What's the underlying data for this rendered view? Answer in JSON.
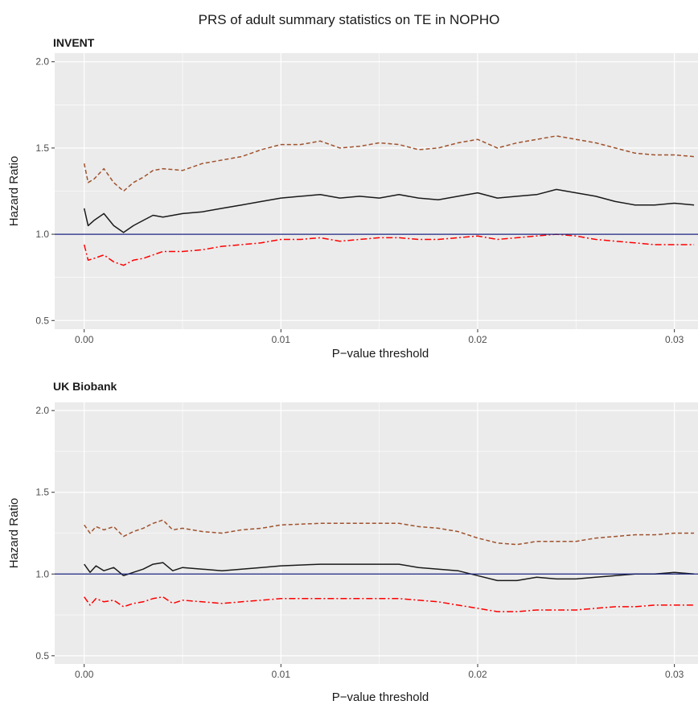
{
  "title": "PRS of adult summary statistics on TE in NOPHO",
  "colors": {
    "panel_bg": "#EBEBEB",
    "grid": "#FFFFFF",
    "hr_line": "#1A1A1A",
    "upper_ci": "#A0522D",
    "lower_ci": "#FF0000",
    "reference_line": "#1A237E"
  },
  "chart_data": [
    {
      "type": "line",
      "panel_title": "INVENT",
      "xlabel": "P−value threshold",
      "ylabel": "Hazard Ratio",
      "xlim": [
        -0.0015,
        0.0312
      ],
      "ylim": [
        0.45,
        2.05
      ],
      "x_ticks": [
        0.0,
        0.01,
        0.02,
        0.03
      ],
      "x_tick_labels": [
        "0.00",
        "0.01",
        "0.02",
        "0.03"
      ],
      "y_ticks": [
        0.5,
        1.0,
        1.5,
        2.0
      ],
      "y_tick_labels": [
        "0.5",
        "1.0",
        "1.5",
        "2.0"
      ],
      "reference_line": 1.0,
      "grid": true,
      "series": [
        {
          "style": "solid",
          "color": "#1A1A1A",
          "x": [
            0.0,
            0.0002,
            0.0005,
            0.001,
            0.0015,
            0.002,
            0.0025,
            0.003,
            0.0035,
            0.004,
            0.005,
            0.006,
            0.007,
            0.008,
            0.009,
            0.01,
            0.011,
            0.012,
            0.013,
            0.014,
            0.015,
            0.016,
            0.017,
            0.018,
            0.019,
            0.02,
            0.021,
            0.022,
            0.023,
            0.024,
            0.025,
            0.026,
            0.027,
            0.028,
            0.029,
            0.03,
            0.031
          ],
          "y": [
            1.15,
            1.05,
            1.08,
            1.12,
            1.05,
            1.01,
            1.05,
            1.08,
            1.11,
            1.1,
            1.12,
            1.13,
            1.15,
            1.17,
            1.19,
            1.21,
            1.22,
            1.23,
            1.21,
            1.22,
            1.21,
            1.23,
            1.21,
            1.2,
            1.22,
            1.24,
            1.21,
            1.22,
            1.23,
            1.26,
            1.24,
            1.22,
            1.19,
            1.17,
            1.17,
            1.18,
            1.17
          ]
        },
        {
          "style": "dashed",
          "color": "#A0522D",
          "x": [
            0.0,
            0.0002,
            0.0005,
            0.001,
            0.0015,
            0.002,
            0.0025,
            0.003,
            0.0035,
            0.004,
            0.005,
            0.006,
            0.007,
            0.008,
            0.009,
            0.01,
            0.011,
            0.012,
            0.013,
            0.014,
            0.015,
            0.016,
            0.017,
            0.018,
            0.019,
            0.02,
            0.021,
            0.022,
            0.023,
            0.024,
            0.025,
            0.026,
            0.027,
            0.028,
            0.029,
            0.03,
            0.031
          ],
          "y": [
            1.41,
            1.3,
            1.32,
            1.38,
            1.3,
            1.25,
            1.3,
            1.33,
            1.37,
            1.38,
            1.37,
            1.41,
            1.43,
            1.45,
            1.49,
            1.52,
            1.52,
            1.54,
            1.5,
            1.51,
            1.53,
            1.52,
            1.49,
            1.5,
            1.53,
            1.55,
            1.5,
            1.53,
            1.55,
            1.57,
            1.55,
            1.53,
            1.5,
            1.47,
            1.46,
            1.46,
            1.45
          ]
        },
        {
          "style": "dotdash",
          "color": "#FF0000",
          "x": [
            0.0,
            0.0002,
            0.0005,
            0.001,
            0.0015,
            0.002,
            0.0025,
            0.003,
            0.0035,
            0.004,
            0.005,
            0.006,
            0.007,
            0.008,
            0.009,
            0.01,
            0.011,
            0.012,
            0.013,
            0.014,
            0.015,
            0.016,
            0.017,
            0.018,
            0.019,
            0.02,
            0.021,
            0.022,
            0.023,
            0.024,
            0.025,
            0.026,
            0.027,
            0.028,
            0.029,
            0.03,
            0.031
          ],
          "y": [
            0.94,
            0.85,
            0.86,
            0.88,
            0.84,
            0.82,
            0.85,
            0.86,
            0.88,
            0.9,
            0.9,
            0.91,
            0.93,
            0.94,
            0.95,
            0.97,
            0.97,
            0.98,
            0.96,
            0.97,
            0.98,
            0.98,
            0.97,
            0.97,
            0.98,
            0.99,
            0.97,
            0.98,
            0.99,
            1.0,
            0.99,
            0.97,
            0.96,
            0.95,
            0.94,
            0.94,
            0.94
          ]
        }
      ]
    },
    {
      "type": "line",
      "panel_title": "UK Biobank",
      "xlabel": "P−value threshold",
      "ylabel": "Hazard Ratio",
      "xlim": [
        -0.0015,
        0.0312
      ],
      "ylim": [
        0.45,
        2.05
      ],
      "x_ticks": [
        0.0,
        0.01,
        0.02,
        0.03
      ],
      "x_tick_labels": [
        "0.00",
        "0.01",
        "0.02",
        "0.03"
      ],
      "y_ticks": [
        0.5,
        1.0,
        1.5,
        2.0
      ],
      "y_tick_labels": [
        "0.5",
        "1.0",
        "1.5",
        "2.0"
      ],
      "reference_line": 1.0,
      "grid": true,
      "series": [
        {
          "style": "solid",
          "color": "#1A1A1A",
          "x": [
            0.0,
            0.0003,
            0.0006,
            0.001,
            0.0015,
            0.002,
            0.0025,
            0.003,
            0.0035,
            0.004,
            0.0045,
            0.005,
            0.006,
            0.007,
            0.008,
            0.009,
            0.01,
            0.012,
            0.014,
            0.016,
            0.017,
            0.018,
            0.019,
            0.02,
            0.021,
            0.022,
            0.023,
            0.024,
            0.025,
            0.026,
            0.027,
            0.028,
            0.029,
            0.03,
            0.031
          ],
          "y": [
            1.06,
            1.01,
            1.05,
            1.02,
            1.04,
            0.99,
            1.01,
            1.03,
            1.06,
            1.07,
            1.02,
            1.04,
            1.03,
            1.02,
            1.03,
            1.04,
            1.05,
            1.06,
            1.06,
            1.06,
            1.04,
            1.03,
            1.02,
            0.99,
            0.96,
            0.96,
            0.98,
            0.97,
            0.97,
            0.98,
            0.99,
            1.0,
            1.0,
            1.01,
            1.0
          ]
        },
        {
          "style": "dashed",
          "color": "#A0522D",
          "x": [
            0.0,
            0.0003,
            0.0006,
            0.001,
            0.0015,
            0.002,
            0.0025,
            0.003,
            0.0035,
            0.004,
            0.0045,
            0.005,
            0.006,
            0.007,
            0.008,
            0.009,
            0.01,
            0.012,
            0.014,
            0.016,
            0.017,
            0.018,
            0.019,
            0.02,
            0.021,
            0.022,
            0.023,
            0.024,
            0.025,
            0.026,
            0.027,
            0.028,
            0.029,
            0.03,
            0.031
          ],
          "y": [
            1.3,
            1.25,
            1.29,
            1.27,
            1.29,
            1.23,
            1.26,
            1.28,
            1.31,
            1.33,
            1.27,
            1.28,
            1.26,
            1.25,
            1.27,
            1.28,
            1.3,
            1.31,
            1.31,
            1.31,
            1.29,
            1.28,
            1.26,
            1.22,
            1.19,
            1.18,
            1.2,
            1.2,
            1.2,
            1.22,
            1.23,
            1.24,
            1.24,
            1.25,
            1.25
          ]
        },
        {
          "style": "dotdash",
          "color": "#FF0000",
          "x": [
            0.0,
            0.0003,
            0.0006,
            0.001,
            0.0015,
            0.002,
            0.0025,
            0.003,
            0.0035,
            0.004,
            0.0045,
            0.005,
            0.006,
            0.007,
            0.008,
            0.009,
            0.01,
            0.012,
            0.014,
            0.016,
            0.017,
            0.018,
            0.019,
            0.02,
            0.021,
            0.022,
            0.023,
            0.024,
            0.025,
            0.026,
            0.027,
            0.028,
            0.029,
            0.03,
            0.031
          ],
          "y": [
            0.86,
            0.81,
            0.85,
            0.83,
            0.84,
            0.8,
            0.82,
            0.83,
            0.85,
            0.86,
            0.82,
            0.84,
            0.83,
            0.82,
            0.83,
            0.84,
            0.85,
            0.85,
            0.85,
            0.85,
            0.84,
            0.83,
            0.81,
            0.79,
            0.77,
            0.77,
            0.78,
            0.78,
            0.78,
            0.79,
            0.8,
            0.8,
            0.81,
            0.81,
            0.81
          ]
        }
      ]
    }
  ]
}
